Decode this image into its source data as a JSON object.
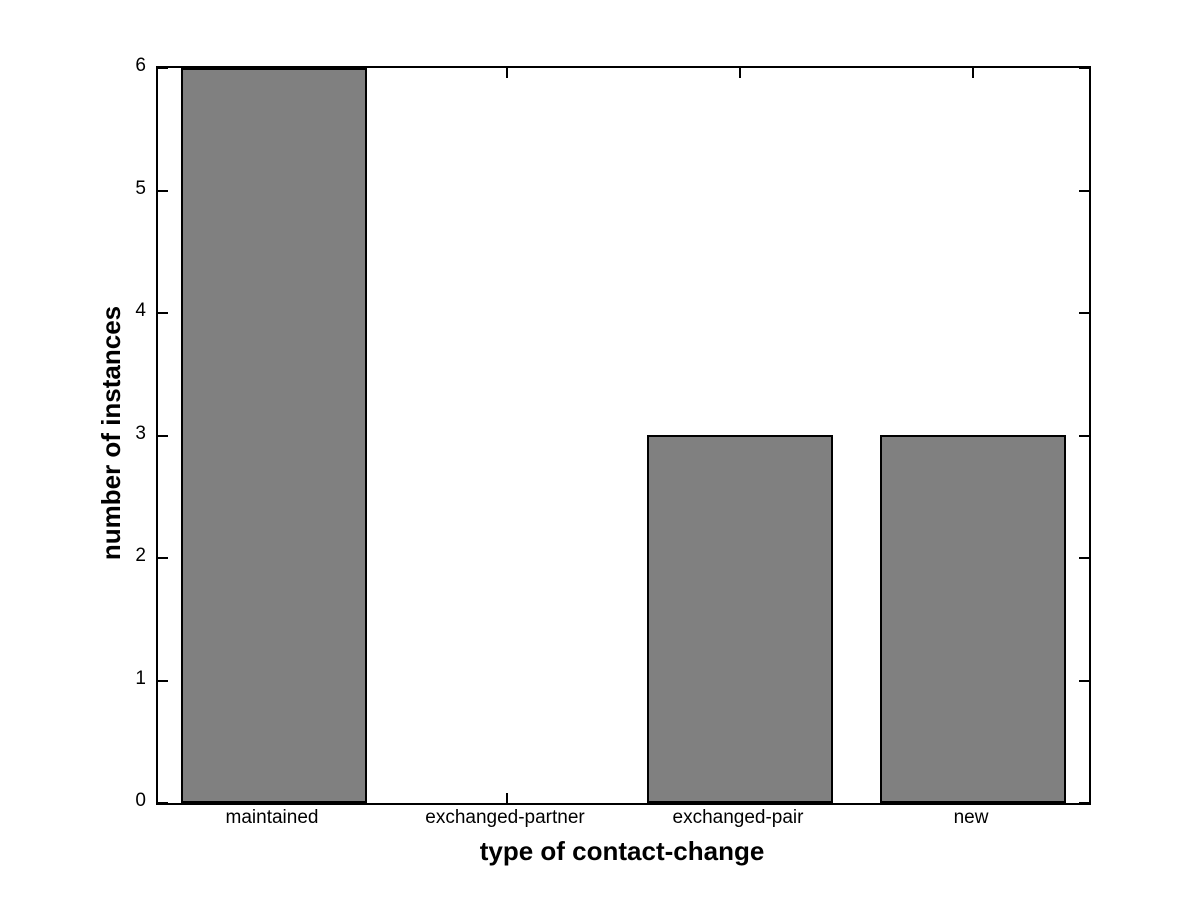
{
  "chart_data": {
    "type": "bar",
    "categories": [
      "maintained",
      "exchanged-partner",
      "exchanged-pair",
      "new"
    ],
    "values": [
      6,
      0,
      3,
      3
    ],
    "title": "",
    "xlabel": "type of contact-change",
    "ylabel": "number of instances",
    "ylim": [
      0,
      6
    ],
    "yticks": [
      0,
      1,
      2,
      3,
      4,
      5,
      6
    ],
    "ytick_labels": [
      "0",
      "1",
      "2",
      "3",
      "4",
      "5",
      "6"
    ],
    "bar_width_fraction": 0.8,
    "bar_color": "#808080",
    "bar_edge_color": "#000000",
    "axis_color": "#000000",
    "text_color": "#000000",
    "background_color": "#ffffff",
    "grid": false,
    "legend": null
  }
}
